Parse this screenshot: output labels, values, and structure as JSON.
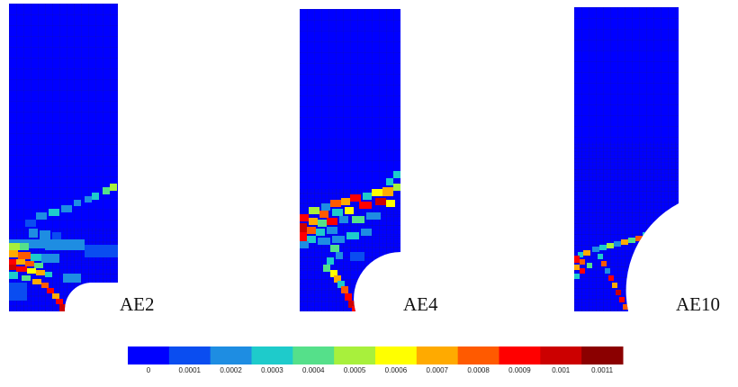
{
  "panels": [
    {
      "label": "AE2",
      "hole": "small"
    },
    {
      "label": "AE4",
      "hole": "medium"
    },
    {
      "label": "AE10",
      "hole": "large"
    }
  ],
  "colorbar": {
    "colors": [
      "#0000ff",
      "#0a4df0",
      "#1e8de2",
      "#1ecbcb",
      "#55e08a",
      "#a8f03c",
      "#ffff00",
      "#ffaa00",
      "#ff5a00",
      "#ff0000",
      "#cc0000",
      "#8b0000"
    ],
    "tick_labels": [
      "0",
      "0.0001",
      "0.0002",
      "0.0003",
      "0.0004",
      "0.0005",
      "0.0006",
      "0.0007",
      "0.0008",
      "0.0009",
      "0.001",
      "0.0011"
    ]
  },
  "colors": {
    "background_field": "#0000ff",
    "mesh_line": "#1a1a6a"
  }
}
